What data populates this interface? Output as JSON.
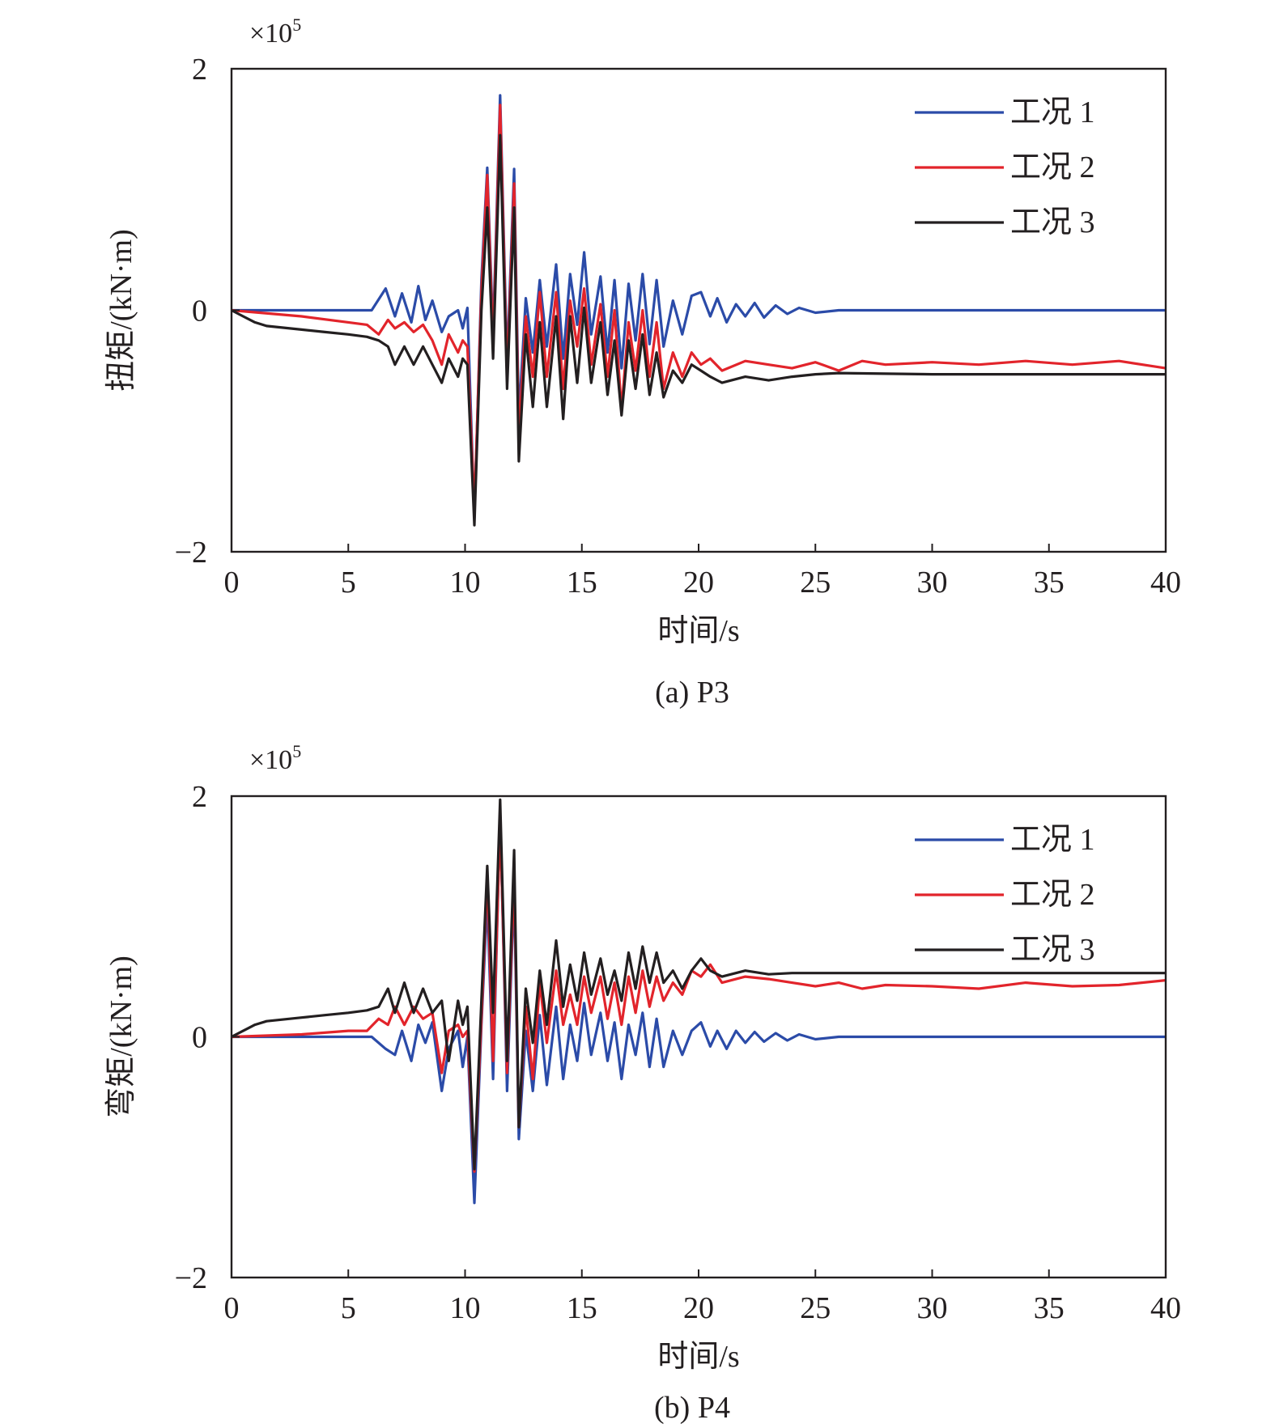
{
  "chart_data": [
    {
      "type": "line",
      "caption": "(a) P3",
      "scale_label": "×10",
      "scale_exponent": "5",
      "xlabel": "时间/s",
      "ylabel": "扭矩/(kN·m)",
      "xlim": [
        0,
        40
      ],
      "ylim": [
        -2,
        2
      ],
      "x_ticks": [
        0,
        5,
        10,
        15,
        20,
        25,
        30,
        35,
        40
      ],
      "y_ticks": [
        -2,
        0,
        2
      ],
      "y_tick_labels": [
        "−2",
        "0",
        "2"
      ],
      "grid": false,
      "legend_position": "top-right",
      "series": [
        {
          "name": "工况 1",
          "color": "#2b4ba8",
          "x": [
            0,
            5,
            6,
            6.6,
            7,
            7.3,
            7.7,
            8,
            8.3,
            8.6,
            9,
            9.3,
            9.7,
            9.9,
            10.1,
            10.4,
            10.7,
            10.95,
            11.2,
            11.5,
            11.8,
            12.1,
            12.3,
            12.6,
            12.9,
            13.2,
            13.5,
            13.9,
            14.2,
            14.5,
            14.8,
            15.1,
            15.4,
            15.8,
            16.1,
            16.4,
            16.7,
            17,
            17.3,
            17.6,
            17.9,
            18.2,
            18.5,
            18.9,
            19.3,
            19.7,
            20.1,
            20.5,
            20.8,
            21.2,
            21.6,
            22,
            22.4,
            22.8,
            23.3,
            23.8,
            24.3,
            25,
            26,
            28,
            30,
            35,
            40
          ],
          "y": [
            0,
            0,
            0,
            0.18,
            -0.05,
            0.14,
            -0.1,
            0.2,
            -0.08,
            0.08,
            -0.18,
            -0.05,
            0.0,
            -0.15,
            0.02,
            -1.72,
            0.25,
            1.18,
            -0.2,
            1.78,
            -0.45,
            1.17,
            -0.9,
            0.1,
            -0.35,
            0.25,
            -0.3,
            0.38,
            -0.4,
            0.3,
            -0.12,
            0.48,
            -0.2,
            0.28,
            -0.35,
            0.25,
            -0.48,
            0.22,
            -0.25,
            0.3,
            -0.28,
            0.25,
            -0.3,
            0.08,
            -0.2,
            0.12,
            0.15,
            -0.05,
            0.1,
            -0.1,
            0.05,
            -0.05,
            0.06,
            -0.06,
            0.04,
            -0.03,
            0.02,
            -0.02,
            0,
            0,
            0,
            0,
            0
          ]
        },
        {
          "name": "工况 2",
          "color": "#e2242b",
          "x": [
            0,
            3,
            5,
            5.8,
            6.3,
            6.7,
            7,
            7.4,
            7.8,
            8.2,
            8.6,
            9,
            9.3,
            9.7,
            9.9,
            10.1,
            10.4,
            10.7,
            10.95,
            11.2,
            11.5,
            11.8,
            12.1,
            12.3,
            12.6,
            12.9,
            13.2,
            13.5,
            13.9,
            14.2,
            14.5,
            14.8,
            15.1,
            15.4,
            15.8,
            16.1,
            16.4,
            16.7,
            17,
            17.3,
            17.6,
            17.9,
            18.2,
            18.5,
            18.9,
            19.3,
            19.7,
            20.1,
            20.5,
            21,
            22,
            23,
            24,
            25,
            26,
            27,
            28,
            30,
            32,
            34,
            36,
            38,
            40
          ],
          "y": [
            0,
            -0.05,
            -0.1,
            -0.12,
            -0.2,
            -0.08,
            -0.15,
            -0.1,
            -0.18,
            -0.12,
            -0.25,
            -0.45,
            -0.2,
            -0.35,
            -0.25,
            -0.3,
            -1.65,
            0.15,
            1.12,
            -0.3,
            1.7,
            -0.55,
            1.05,
            -1.05,
            -0.05,
            -0.55,
            0.15,
            -0.55,
            0.15,
            -0.65,
            0.08,
            -0.3,
            0.18,
            -0.45,
            0.05,
            -0.55,
            0.0,
            -0.82,
            -0.1,
            -0.5,
            0.0,
            -0.55,
            -0.1,
            -0.65,
            -0.35,
            -0.55,
            -0.35,
            -0.45,
            -0.4,
            -0.5,
            -0.42,
            -0.45,
            -0.48,
            -0.43,
            -0.5,
            -0.42,
            -0.45,
            -0.43,
            -0.45,
            -0.42,
            -0.45,
            -0.42,
            -0.48
          ]
        },
        {
          "name": "工况 3",
          "color": "#231f20",
          "x": [
            0,
            0.5,
            1,
            1.5,
            2,
            3,
            4,
            5,
            5.8,
            6.3,
            6.7,
            7,
            7.4,
            7.8,
            8.2,
            8.6,
            9,
            9.3,
            9.7,
            9.9,
            10.1,
            10.4,
            10.7,
            10.95,
            11.2,
            11.5,
            11.8,
            12.1,
            12.3,
            12.6,
            12.9,
            13.2,
            13.5,
            13.9,
            14.2,
            14.5,
            14.8,
            15.1,
            15.4,
            15.8,
            16.1,
            16.4,
            16.7,
            17,
            17.3,
            17.6,
            17.9,
            18.2,
            18.5,
            18.9,
            19.3,
            19.7,
            20.1,
            20.5,
            21,
            22,
            23,
            24,
            25,
            26,
            30,
            35,
            40
          ],
          "y": [
            0,
            -0.05,
            -0.1,
            -0.13,
            -0.14,
            -0.16,
            -0.18,
            -0.2,
            -0.22,
            -0.25,
            -0.3,
            -0.45,
            -0.3,
            -0.45,
            -0.3,
            -0.45,
            -0.6,
            -0.4,
            -0.55,
            -0.4,
            -0.45,
            -1.78,
            0.0,
            0.85,
            -0.4,
            1.45,
            -0.65,
            0.85,
            -1.25,
            -0.2,
            -0.8,
            -0.1,
            -0.8,
            -0.05,
            -0.9,
            -0.05,
            -0.6,
            0.02,
            -0.6,
            -0.1,
            -0.7,
            -0.25,
            -0.87,
            -0.25,
            -0.65,
            -0.2,
            -0.7,
            -0.35,
            -0.72,
            -0.5,
            -0.6,
            -0.45,
            -0.5,
            -0.55,
            -0.6,
            -0.55,
            -0.58,
            -0.55,
            -0.53,
            -0.52,
            -0.53,
            -0.53,
            -0.53
          ]
        }
      ]
    },
    {
      "type": "line",
      "caption": "(b) P4",
      "scale_label": "×10",
      "scale_exponent": "5",
      "xlabel": "时间/s",
      "ylabel": "弯矩/(kN·m)",
      "xlim": [
        0,
        40
      ],
      "ylim": [
        -2,
        2
      ],
      "x_ticks": [
        0,
        5,
        10,
        15,
        20,
        25,
        30,
        35,
        40
      ],
      "y_ticks": [
        -2,
        0,
        2
      ],
      "y_tick_labels": [
        "−2",
        "0",
        "2"
      ],
      "grid": false,
      "legend_position": "top-right",
      "series": [
        {
          "name": "工况 1",
          "color": "#2b4ba8",
          "x": [
            0,
            5,
            6,
            6.6,
            7,
            7.3,
            7.7,
            8,
            8.3,
            8.6,
            9,
            9.3,
            9.7,
            9.9,
            10.1,
            10.4,
            10.7,
            10.95,
            11.2,
            11.5,
            11.8,
            12.1,
            12.3,
            12.6,
            12.9,
            13.2,
            13.5,
            13.9,
            14.2,
            14.5,
            14.8,
            15.1,
            15.4,
            15.8,
            16.1,
            16.4,
            16.7,
            17,
            17.3,
            17.6,
            17.9,
            18.2,
            18.5,
            18.9,
            19.3,
            19.7,
            20.1,
            20.5,
            20.8,
            21.2,
            21.6,
            22,
            22.4,
            22.8,
            23.3,
            23.8,
            24.3,
            25,
            26,
            28,
            30,
            35,
            40
          ],
          "y": [
            0,
            0,
            0,
            -0.1,
            -0.15,
            0.05,
            -0.2,
            0.1,
            -0.05,
            0.12,
            -0.45,
            -0.1,
            0.05,
            -0.25,
            0.0,
            -1.38,
            0.1,
            1.15,
            -0.35,
            1.85,
            -0.45,
            1.25,
            -0.85,
            0.05,
            -0.45,
            0.18,
            -0.4,
            0.25,
            -0.35,
            0.1,
            -0.2,
            0.28,
            -0.15,
            0.2,
            -0.2,
            0.12,
            -0.35,
            0.1,
            -0.15,
            0.2,
            -0.25,
            0.15,
            -0.25,
            0.05,
            -0.15,
            0.05,
            0.12,
            -0.08,
            0.05,
            -0.1,
            0.05,
            -0.05,
            0.04,
            -0.04,
            0.03,
            -0.03,
            0.02,
            -0.02,
            0,
            0,
            0,
            0,
            0
          ]
        },
        {
          "name": "工况 2",
          "color": "#e2242b",
          "x": [
            0,
            3,
            5,
            5.8,
            6.3,
            6.7,
            7,
            7.4,
            7.8,
            8.2,
            8.6,
            9,
            9.3,
            9.7,
            9.9,
            10.1,
            10.4,
            10.7,
            10.95,
            11.2,
            11.5,
            11.8,
            12.1,
            12.3,
            12.6,
            12.9,
            13.2,
            13.5,
            13.9,
            14.2,
            14.5,
            14.8,
            15.1,
            15.4,
            15.8,
            16.1,
            16.4,
            16.7,
            17,
            17.3,
            17.6,
            17.9,
            18.2,
            18.5,
            18.9,
            19.3,
            19.7,
            20.1,
            20.5,
            21,
            22,
            23,
            24,
            25,
            26,
            27,
            28,
            30,
            32,
            34,
            36,
            38,
            40
          ],
          "y": [
            0,
            0.02,
            0.05,
            0.05,
            0.15,
            0.1,
            0.25,
            0.1,
            0.25,
            0.15,
            0.2,
            -0.3,
            0.05,
            0.1,
            0.0,
            0.05,
            -1.12,
            0.15,
            1.35,
            -0.2,
            1.8,
            -0.3,
            1.35,
            -0.75,
            0.25,
            -0.35,
            0.45,
            -0.05,
            0.55,
            0.1,
            0.35,
            0.1,
            0.5,
            0.2,
            0.5,
            0.15,
            0.45,
            0.1,
            0.5,
            0.2,
            0.55,
            0.25,
            0.5,
            0.3,
            0.45,
            0.35,
            0.55,
            0.5,
            0.6,
            0.45,
            0.5,
            0.48,
            0.45,
            0.42,
            0.45,
            0.4,
            0.43,
            0.42,
            0.4,
            0.45,
            0.42,
            0.43,
            0.47
          ]
        },
        {
          "name": "工况 3",
          "color": "#231f20",
          "x": [
            0,
            0.5,
            1,
            1.5,
            2,
            3,
            4,
            5,
            5.8,
            6.3,
            6.7,
            7,
            7.4,
            7.8,
            8.2,
            8.6,
            9,
            9.3,
            9.7,
            9.9,
            10.1,
            10.4,
            10.7,
            10.95,
            11.2,
            11.5,
            11.8,
            12.1,
            12.3,
            12.6,
            12.9,
            13.2,
            13.5,
            13.9,
            14.2,
            14.5,
            14.8,
            15.1,
            15.4,
            15.8,
            16.1,
            16.4,
            16.7,
            17,
            17.3,
            17.6,
            17.9,
            18.2,
            18.5,
            18.9,
            19.3,
            19.7,
            20.1,
            20.5,
            21,
            22,
            23,
            24,
            25,
            26,
            30,
            35,
            40
          ],
          "y": [
            0,
            0.05,
            0.1,
            0.13,
            0.14,
            0.16,
            0.18,
            0.2,
            0.22,
            0.25,
            0.4,
            0.2,
            0.45,
            0.2,
            0.4,
            0.2,
            0.3,
            -0.2,
            0.3,
            0.1,
            0.25,
            -1.1,
            0.3,
            1.42,
            0.2,
            1.97,
            -0.2,
            1.55,
            -0.75,
            0.4,
            -0.05,
            0.55,
            0.1,
            0.8,
            0.25,
            0.6,
            0.3,
            0.7,
            0.35,
            0.65,
            0.35,
            0.55,
            0.3,
            0.7,
            0.4,
            0.75,
            0.45,
            0.7,
            0.45,
            0.55,
            0.4,
            0.55,
            0.65,
            0.55,
            0.5,
            0.55,
            0.52,
            0.53,
            0.53,
            0.53,
            0.53,
            0.53,
            0.53
          ]
        }
      ]
    }
  ]
}
